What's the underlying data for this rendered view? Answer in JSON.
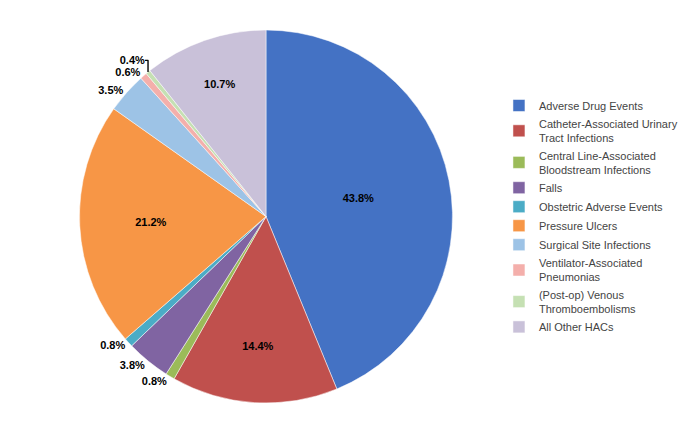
{
  "chart_data": {
    "type": "pie",
    "categories": [
      "Adverse Drug Events",
      "Catheter-Associated Urinary\nTract Infections",
      "Central Line-Associated\nBloodstream Infections",
      "Falls",
      "Obstetric Adverse Events",
      "Pressure Ulcers",
      "Surgical Site Infections",
      "Ventilator-Associated\nPneumonias",
      "(Post-op) Venous\nThromboembolisms",
      "All Other HACs"
    ],
    "values": [
      43.8,
      14.4,
      0.8,
      3.8,
      0.8,
      21.2,
      3.5,
      0.6,
      0.4,
      10.7
    ],
    "value_labels": [
      "43.8%",
      "14.4%",
      "0.8%",
      "3.8%",
      "0.8%",
      "21.2%",
      "3.5%",
      "0.6%",
      "0.4%",
      "10.7%"
    ],
    "colors": [
      "#4472C4",
      "#C0504D",
      "#9BBB59",
      "#8064A2",
      "#4BACC6",
      "#F79646",
      "#9DC3E6",
      "#F4AFAB",
      "#C5E0B3",
      "#C9C1D9"
    ],
    "data_labels": true,
    "legend": "right"
  }
}
